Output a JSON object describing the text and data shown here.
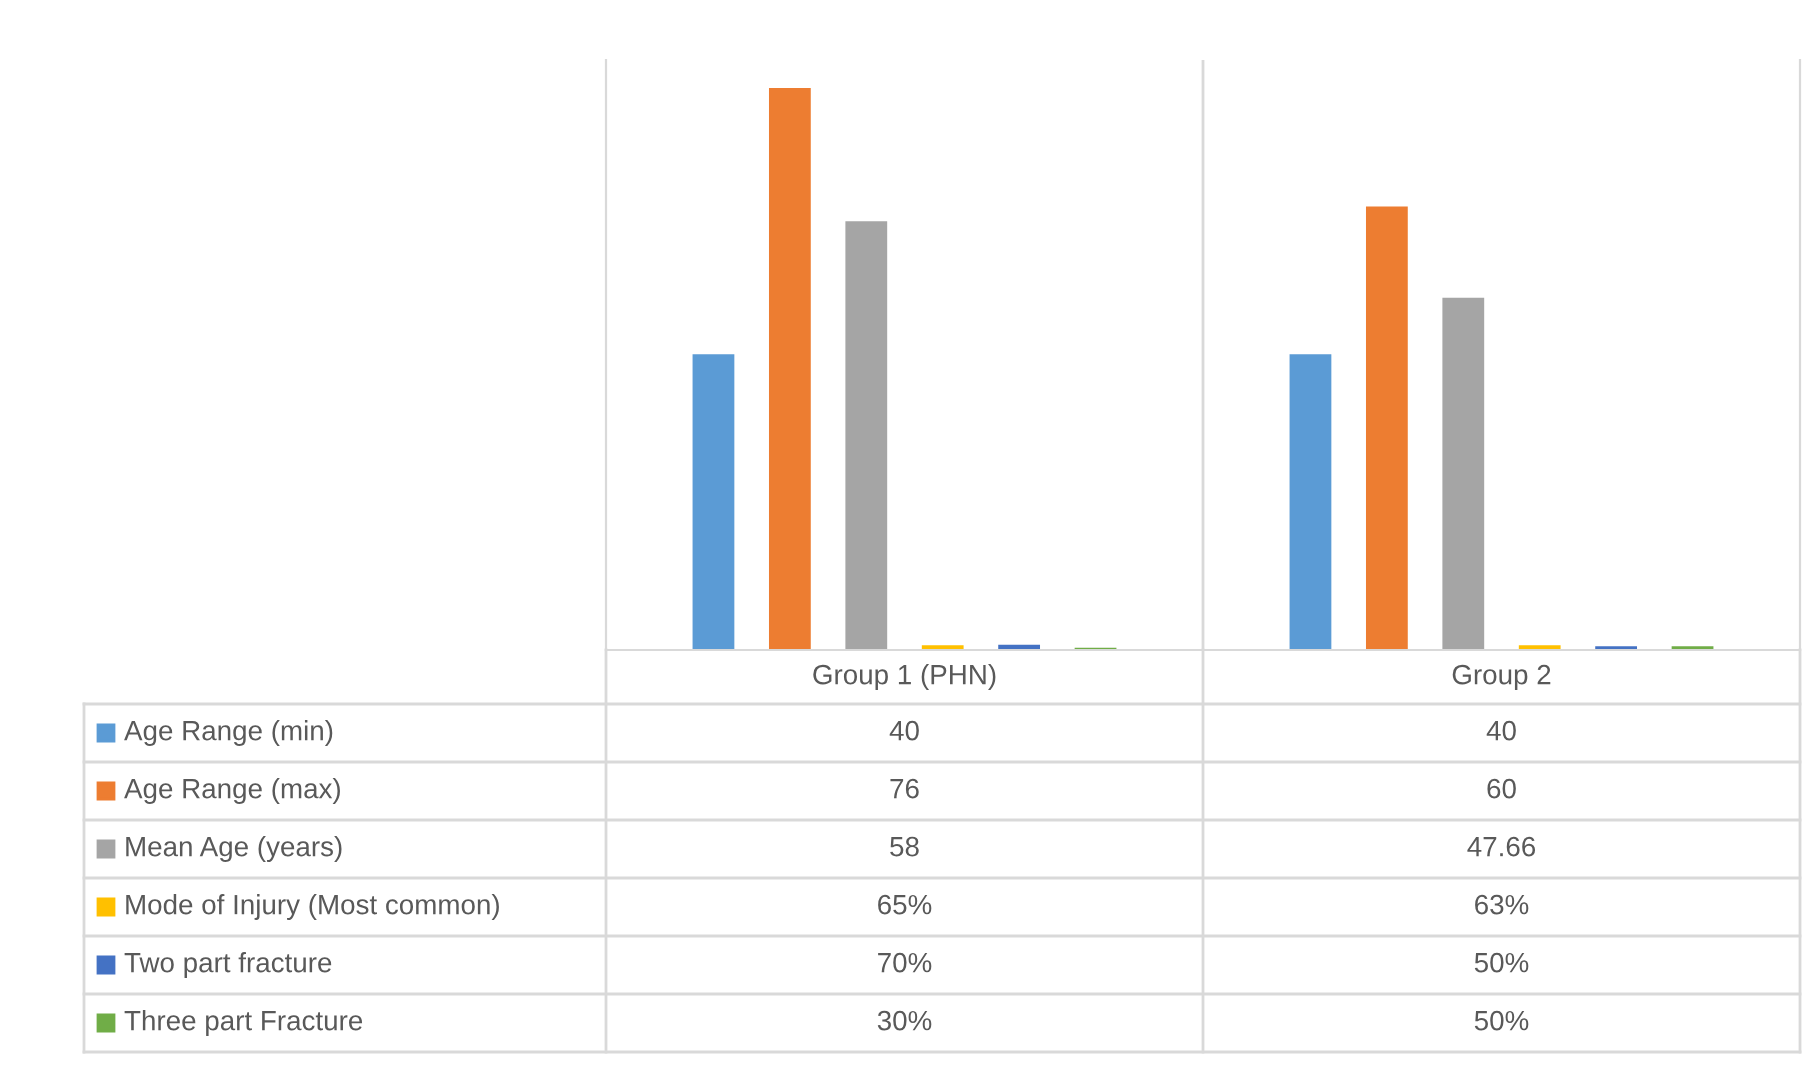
{
  "chart_data": {
    "type": "bar",
    "categories": [
      "Group 1 (PHN)",
      "Group 2"
    ],
    "legend": "bottom left",
    "series": [
      {
        "name": "Age Range (min)",
        "color": "#5b9bd5",
        "values": [
          40,
          40
        ],
        "value_labels": [
          "40",
          "40"
        ]
      },
      {
        "name": "Age Range (max)",
        "color": "#ed7d31",
        "values": [
          76,
          60
        ],
        "value_labels": [
          "76",
          "60"
        ]
      },
      {
        "name": "Mean Age (years)",
        "color": "#a5a5a5",
        "values": [
          58,
          47.66
        ],
        "value_labels": [
          "58",
          "47.66"
        ]
      },
      {
        "name": "Mode of Injury (Most common)",
        "color": "#ffc000",
        "values": [
          0.65,
          0.63
        ],
        "value_labels": [
          "65%",
          "63%"
        ]
      },
      {
        "name": "Two part fracture",
        "color": "#4472c4",
        "values": [
          0.7,
          0.5
        ],
        "value_labels": [
          "70%",
          "50%"
        ]
      },
      {
        "name": "Three part Fracture",
        "color": "#70ad47",
        "values": [
          0.3,
          0.5
        ],
        "value_labels": [
          "30%",
          "50%"
        ]
      }
    ]
  }
}
